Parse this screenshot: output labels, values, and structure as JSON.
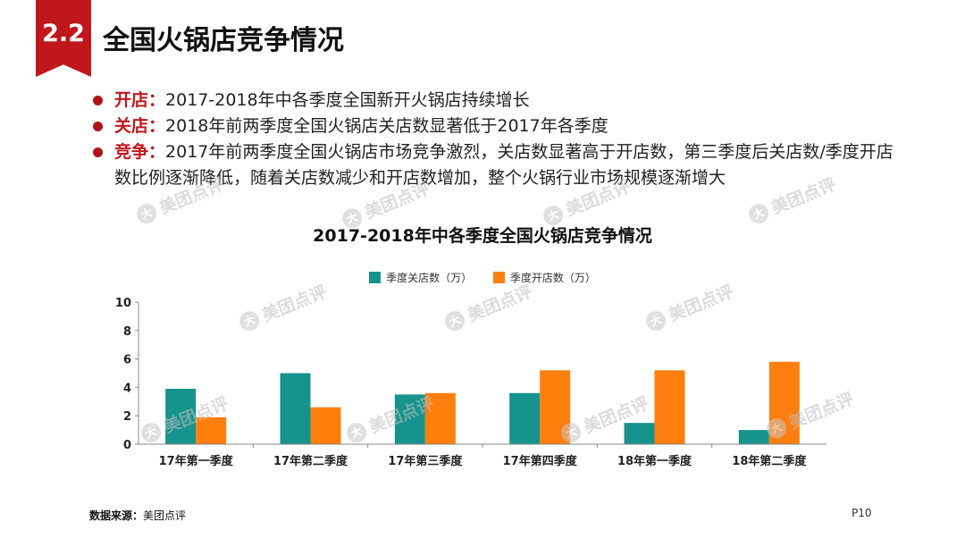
{
  "header": {
    "section_number": "2.2",
    "title": "全国火锅店竞争情况"
  },
  "bullets": [
    {
      "key": "开店：",
      "text": "2017-2018年中各季度全国新开火锅店持续增长"
    },
    {
      "key": "关店：",
      "text": "2018年前两季度全国火锅店关店数显著低于2017年各季度"
    },
    {
      "key": "竞争：",
      "text": "2017年前两季度全国火锅店市场竞争激烈，关店数显著高于开店数，第三季度后关店数/季度开店数比例逐渐降低，随着关店数减少和开店数增加，整个火锅行业市场规模逐渐增大"
    }
  ],
  "watermark": {
    "text": "美团点评",
    "logo": "大"
  },
  "footer": {
    "source_label": "数据来源：",
    "source_value": "美团点评",
    "page": "P10"
  },
  "colors": {
    "accent": "#c0171d",
    "closed": "#16938c",
    "opened": "#ff7f0e"
  },
  "chart_data": {
    "type": "bar",
    "title": "2017-2018年中各季度全国火锅店竞争情况",
    "categories": [
      "17年第一季度",
      "17年第二季度",
      "17年第三季度",
      "17年第四季度",
      "18年第一季度",
      "18年第二季度"
    ],
    "series": [
      {
        "name": "季度关店数（万）",
        "values": [
          3.9,
          5.0,
          3.5,
          3.6,
          1.5,
          1.0
        ]
      },
      {
        "name": "季度开店数（万）",
        "values": [
          1.9,
          2.6,
          3.6,
          5.2,
          5.2,
          5.8
        ]
      }
    ],
    "yticks": [
      "0",
      "2",
      "4",
      "6",
      "8",
      "10"
    ],
    "ylim": [
      0,
      10
    ],
    "grid": false,
    "legend_position": "top-center"
  }
}
